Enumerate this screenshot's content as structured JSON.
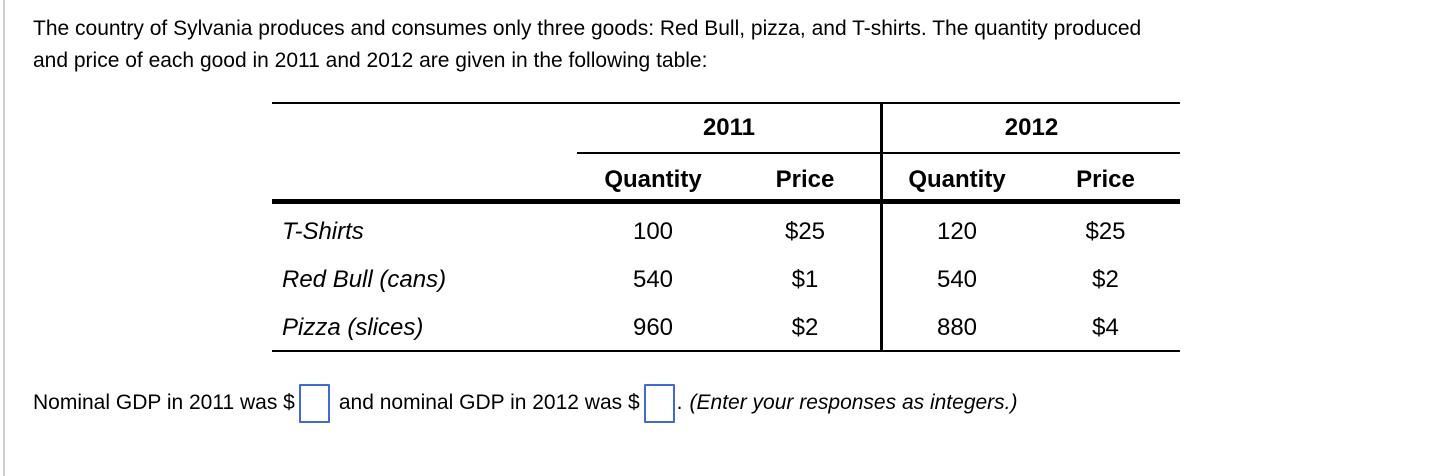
{
  "intro": {
    "line1": "The country of Sylvania produces and consumes only three goods: Red Bull, pizza, and T-shirts. The quantity produced",
    "line2": "and price of each good in 2011 and 2012 are given in the following table:"
  },
  "table": {
    "year_headers": [
      "2011",
      "2012"
    ],
    "col_headers": [
      "Quantity",
      "Price",
      "Quantity",
      "Price"
    ],
    "rows": [
      {
        "label": "T-Shirts",
        "values": [
          "100",
          "$25",
          "120",
          "$25"
        ]
      },
      {
        "label": "Red Bull (cans)",
        "values": [
          "540",
          "$1",
          "540",
          "$2"
        ]
      },
      {
        "label": "Pizza (slices)",
        "values": [
          "960",
          "$2",
          "880",
          "$4"
        ]
      }
    ]
  },
  "answer": {
    "part1": "Nominal GDP in 2011 was $",
    "box1_value": "",
    "part2": "and nominal GDP in 2012 was $",
    "box2_value": "",
    "period": ".",
    "hint": "(Enter your responses as integers.)",
    "box_border_color": "#4169d1"
  },
  "colors": {
    "background": "#ffffff",
    "text": "#000000",
    "table_lines": "#000000",
    "panel_left_border": "#c9cdd4"
  }
}
